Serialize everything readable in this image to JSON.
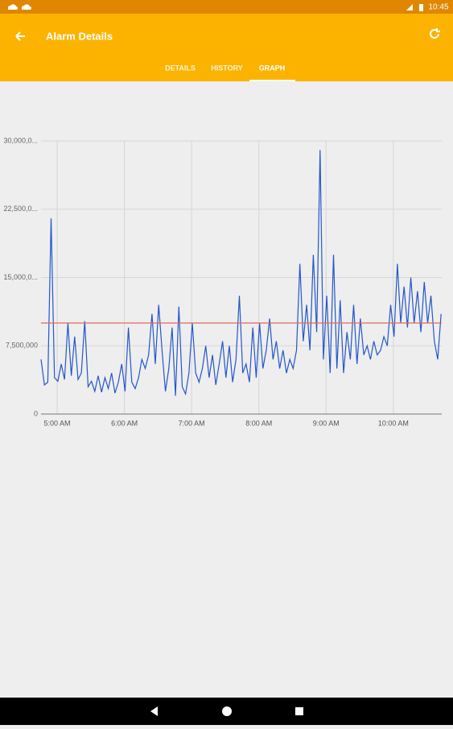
{
  "status_bar": {
    "time": "10:45"
  },
  "toolbar": {
    "title": "Alarm Details"
  },
  "tabs": [
    "DETAILS",
    "HISTORY",
    "GRAPH"
  ],
  "chart_data": {
    "type": "line",
    "x": [
      4.76,
      4.81,
      4.86,
      4.91,
      4.96,
      5.01,
      5.06,
      5.11,
      5.16,
      5.21,
      5.26,
      5.31,
      5.36,
      5.41,
      5.46,
      5.51,
      5.56,
      5.61,
      5.66,
      5.71,
      5.76,
      5.81,
      5.86,
      5.91,
      5.96,
      6.01,
      6.06,
      6.11,
      6.16,
      6.21,
      6.26,
      6.31,
      6.36,
      6.41,
      6.46,
      6.51,
      6.56,
      6.61,
      6.66,
      6.71,
      6.76,
      6.81,
      6.86,
      6.91,
      6.96,
      7.01,
      7.06,
      7.11,
      7.16,
      7.21,
      7.26,
      7.31,
      7.36,
      7.41,
      7.46,
      7.51,
      7.56,
      7.61,
      7.66,
      7.71,
      7.76,
      7.81,
      7.86,
      7.91,
      7.96,
      8.01,
      8.06,
      8.11,
      8.16,
      8.21,
      8.26,
      8.31,
      8.36,
      8.41,
      8.46,
      8.51,
      8.56,
      8.61,
      8.66,
      8.71,
      8.76,
      8.81,
      8.86,
      8.91,
      8.96,
      9.01,
      9.06,
      9.11,
      9.16,
      9.21,
      9.26,
      9.31,
      9.36,
      9.41,
      9.46,
      9.51,
      9.56,
      9.61,
      9.66,
      9.71,
      9.76,
      9.81,
      9.86,
      9.91,
      9.96,
      10.01,
      10.06,
      10.11,
      10.16,
      10.21,
      10.26,
      10.31,
      10.36,
      10.41,
      10.46,
      10.51,
      10.56,
      10.61,
      10.66,
      10.71
    ],
    "series": [
      {
        "color": "#2456c8",
        "values": [
          6000000,
          3200000,
          3500000,
          21500000,
          4000000,
          3600000,
          5500000,
          3800000,
          10000000,
          4200000,
          8500000,
          3800000,
          4500000,
          10200000,
          3000000,
          3600000,
          2500000,
          4200000,
          2400000,
          4000000,
          2800000,
          4500000,
          2300000,
          3500000,
          5500000,
          2500000,
          9500000,
          3500000,
          2800000,
          4000000,
          6000000,
          5000000,
          6500000,
          11000000,
          5500000,
          12000000,
          7000000,
          2500000,
          5000000,
          9500000,
          2000000,
          11800000,
          3000000,
          2200000,
          4500000,
          10000000,
          4500000,
          3500000,
          5000000,
          7500000,
          4000000,
          6500000,
          3200000,
          5500000,
          8000000,
          4000000,
          7500000,
          3500000,
          6000000,
          13000000,
          4500000,
          5500000,
          3500000,
          9500000,
          4000000,
          10000000,
          5000000,
          7000000,
          10500000,
          6000000,
          8000000,
          5000000,
          7000000,
          4500000,
          6000000,
          5000000,
          7000000,
          16500000,
          8000000,
          12000000,
          7000000,
          17500000,
          9000000,
          29000000,
          6000000,
          13000000,
          4500000,
          17500000,
          5000000,
          12500000,
          4500000,
          9000000,
          6000000,
          12000000,
          5500000,
          10500000,
          6500000,
          7500000,
          6000000,
          8000000,
          6500000,
          7000000,
          8500000,
          7500000,
          12000000,
          8500000,
          16500000,
          10000000,
          14000000,
          9500000,
          15000000,
          10000000,
          13500000,
          9000000,
          14500000,
          10000000,
          13000000,
          8000000,
          6000000,
          11000000
        ]
      }
    ],
    "threshold": {
      "value": 10000000,
      "color": "#e06c5f"
    },
    "xlim": [
      4.76,
      10.72
    ],
    "xticks": [
      {
        "value": 5,
        "label": "5:00 AM"
      },
      {
        "value": 6,
        "label": "6:00 AM"
      },
      {
        "value": 7,
        "label": "7:00 AM"
      },
      {
        "value": 8,
        "label": "8:00 AM"
      },
      {
        "value": 9,
        "label": "9:00 AM"
      },
      {
        "value": 10,
        "label": "10:00 AM"
      }
    ],
    "ylim": [
      0,
      30000000
    ],
    "yticks": [
      0,
      {
        "value": 7500000,
        "label": "7,500,000"
      },
      {
        "value": 15000000,
        "label": "15,000,0..."
      },
      {
        "value": 22500000,
        "label": "22,500,0..."
      },
      {
        "value": 30000000,
        "label": "30,000,0..."
      }
    ],
    "grid": true
  }
}
